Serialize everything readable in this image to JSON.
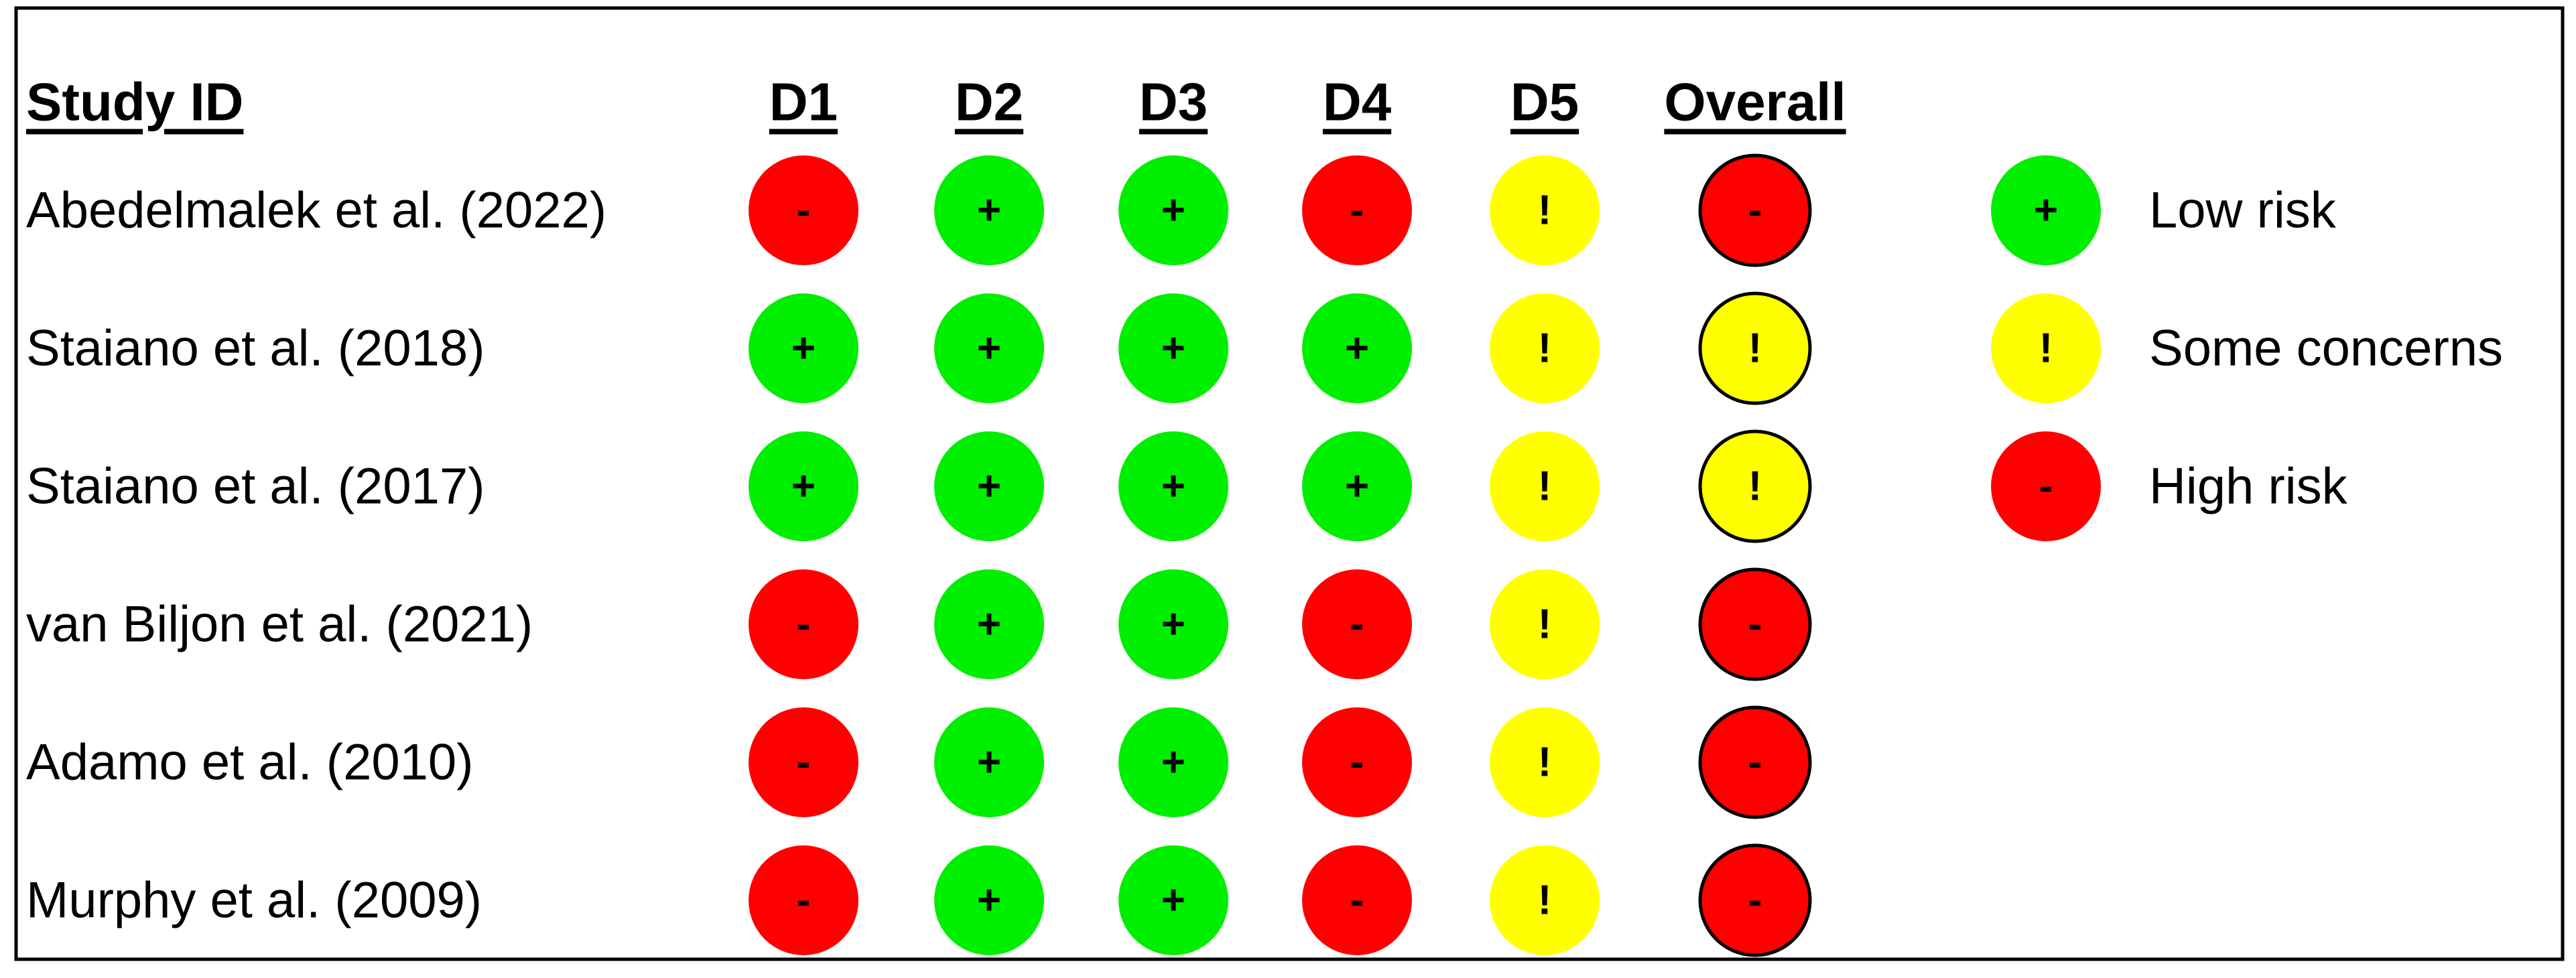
{
  "table": {
    "headers": [
      "Study ID",
      "D1",
      "D2",
      "D3",
      "D4",
      "D5",
      "Overall"
    ],
    "rows": [
      [
        "Abedelmalek et al. (2022)",
        "-",
        "+",
        "+",
        "-",
        "!",
        "-"
      ],
      [
        "Staiano et al. (2018)",
        "+",
        "+",
        "+",
        "+",
        "!",
        "!"
      ],
      [
        "Staiano et al. (2017)",
        "+",
        "+",
        "+",
        "+",
        "!",
        "!"
      ],
      [
        "van Biljon et al. (2021)",
        "-",
        "+",
        "+",
        "-",
        "!",
        "-"
      ],
      [
        "Adamo et al. (2010)",
        "-",
        "+",
        "+",
        "-",
        "!",
        "-"
      ],
      [
        "Murphy et al. (2009)",
        "-",
        "+",
        "+",
        "-",
        "!",
        "-"
      ]
    ]
  },
  "legend": [
    {
      "symbol": "+",
      "label": "Low risk",
      "color": "#00ee00"
    },
    {
      "symbol": "!",
      "label": "Some concerns",
      "color": "#ffff00"
    },
    {
      "symbol": "-",
      "label": "High risk",
      "color": "#ff0000"
    }
  ]
}
